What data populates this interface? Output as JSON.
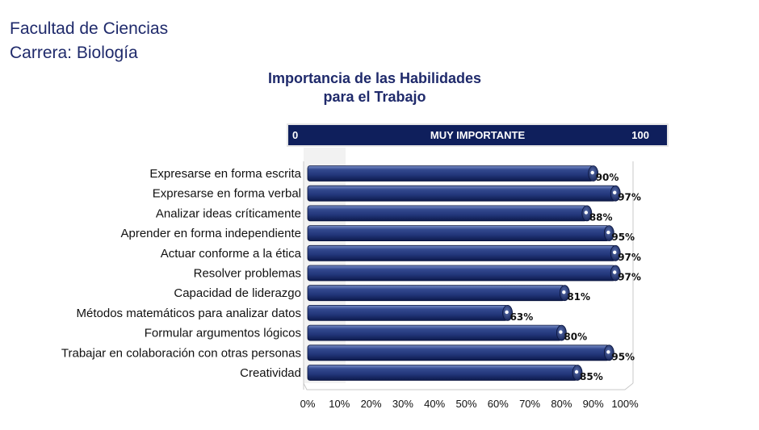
{
  "header": {
    "line1": "Facultad de Ciencias",
    "line2": "Carrera: Biología"
  },
  "scale": {
    "min": "0",
    "label": "MUY IMPORTANTE",
    "max": "100"
  },
  "colors": {
    "bar": "#233a80",
    "bar_dark": "#0f1f5c",
    "text_title": "#1f2a6b"
  },
  "chart_data": {
    "type": "bar",
    "orientation": "horizontal",
    "title": "Importancia de las Habilidades para el Trabajo",
    "title_lines": [
      "Importancia de las Habilidades",
      "para el Trabajo"
    ],
    "categories": [
      "Expresarse en forma escrita",
      "Expresarse en forma verbal",
      "Analizar ideas críticamente",
      "Aprender en forma independiente",
      "Actuar conforme a la ética",
      "Resolver problemas",
      "Capacidad de liderazgo",
      "Métodos matemáticos para analizar datos",
      "Formular argumentos lógicos",
      "Trabajar en colaboración con otras personas",
      "Creatividad"
    ],
    "values": [
      90,
      97,
      88,
      95,
      97,
      97,
      81,
      63,
      80,
      95,
      85
    ],
    "value_labels": [
      "90%",
      "97%",
      "88%",
      "95%",
      "97%",
      "97%",
      "81%",
      "63%",
      "80%",
      "95%",
      "85%"
    ],
    "xlim": [
      0,
      100
    ],
    "xticks": [
      "0%",
      "10%",
      "20%",
      "30%",
      "40%",
      "50%",
      "60%",
      "70%",
      "80%",
      "90%",
      "100%"
    ],
    "grid": false
  }
}
